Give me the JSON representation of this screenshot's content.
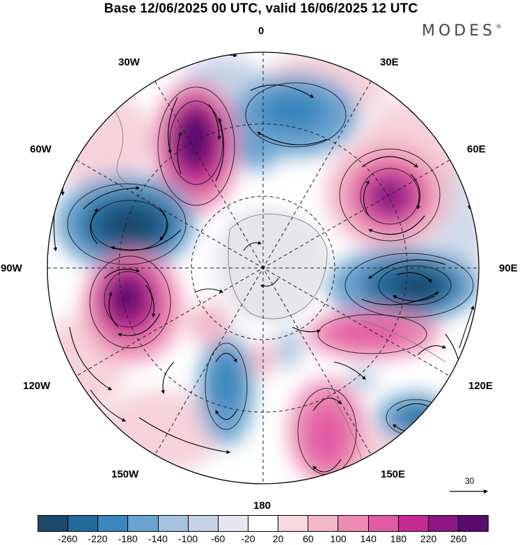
{
  "title": "Base 12/06/2025 00 UTC, valid 16/06/2025 12 UTC",
  "brand": "MODES",
  "brand_mark": "®",
  "longitude_labels": {
    "deg0": "0",
    "e30": "30E",
    "e60": "60E",
    "e90": "90E",
    "e120": "120E",
    "e150": "150E",
    "deg180": "180",
    "w150": "150W",
    "w120": "120W",
    "w90": "90W",
    "w60": "60W",
    "w30": "30W"
  },
  "reference_vector": "30",
  "colorbar": {
    "ticks": [
      "-260",
      "-220",
      "-180",
      "-140",
      "-100",
      "-60",
      "-20",
      "20",
      "60",
      "100",
      "140",
      "180",
      "220",
      "260"
    ],
    "colors": [
      "#1c4a6e",
      "#246a9a",
      "#3b86bd",
      "#6aa3cf",
      "#a7c2e0",
      "#c8d2e6",
      "#e6e6f0",
      "#ffffff",
      "#f8d9e0",
      "#f2b8c8",
      "#ec8ab3",
      "#e15aa2",
      "#c42a92",
      "#8e1684",
      "#5a0c6e"
    ]
  },
  "anomaly_centers": [
    {
      "sign": "negative",
      "level": "-260",
      "region": "75W"
    },
    {
      "sign": "positive",
      "level": "260",
      "region": "30W"
    },
    {
      "sign": "positive",
      "level": "220",
      "region": "105W"
    },
    {
      "sign": "positive",
      "level": "220",
      "region": "60E"
    },
    {
      "sign": "negative",
      "level": "-220",
      "region": "95E"
    },
    {
      "sign": "negative",
      "level": "-180",
      "region": "15E"
    },
    {
      "sign": "positive",
      "level": "140",
      "region": "150E"
    },
    {
      "sign": "negative",
      "level": "-180",
      "region": "125E"
    },
    {
      "sign": "negative",
      "level": "-140",
      "region": "165W"
    },
    {
      "sign": "positive",
      "level": "140",
      "region": "115E"
    }
  ]
}
